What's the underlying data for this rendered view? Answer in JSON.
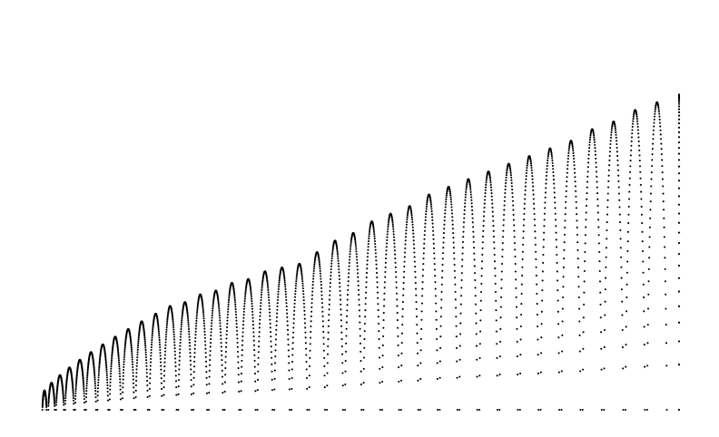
{
  "chart_data": {
    "type": "scatter",
    "title": "",
    "xlabel": "",
    "ylabel": "",
    "axes_visible": false,
    "grid": false,
    "legend": "none",
    "marker": "dot",
    "color": "#000000",
    "shape": "sequence of half-sine arches sampled as dense dots; arch spacing grows and arch height grows from left to right",
    "arch_count": 39,
    "arch_peak_x": [
      0.5,
      1.0,
      1.5,
      2.0,
      2.5,
      3.0,
      3.5,
      4.0,
      4.5,
      5.0,
      5.5,
      6.0,
      6.5,
      7.0,
      7.5,
      8.0,
      8.5,
      9.0,
      9.5,
      10.0,
      11.0,
      12.0,
      13.0,
      14.0,
      15.0,
      16.0,
      17.0,
      18.0,
      19.0,
      20.0,
      21.0,
      22.0,
      23.0,
      24.0,
      25.0,
      26.0,
      27.0,
      28.0,
      29.0
    ],
    "arch_peak_y": [
      0.05,
      0.07,
      0.09,
      0.11,
      0.13,
      0.15,
      0.17,
      0.19,
      0.21,
      0.23,
      0.25,
      0.27,
      0.28,
      0.3,
      0.31,
      0.33,
      0.34,
      0.36,
      0.37,
      0.38,
      0.41,
      0.44,
      0.46,
      0.49,
      0.51,
      0.53,
      0.56,
      0.58,
      0.6,
      0.62,
      0.64,
      0.66,
      0.68,
      0.7,
      0.73,
      0.75,
      0.78,
      0.8,
      0.82
    ],
    "xlim": [
      0,
      30
    ],
    "ylim": [
      0,
      1
    ]
  }
}
